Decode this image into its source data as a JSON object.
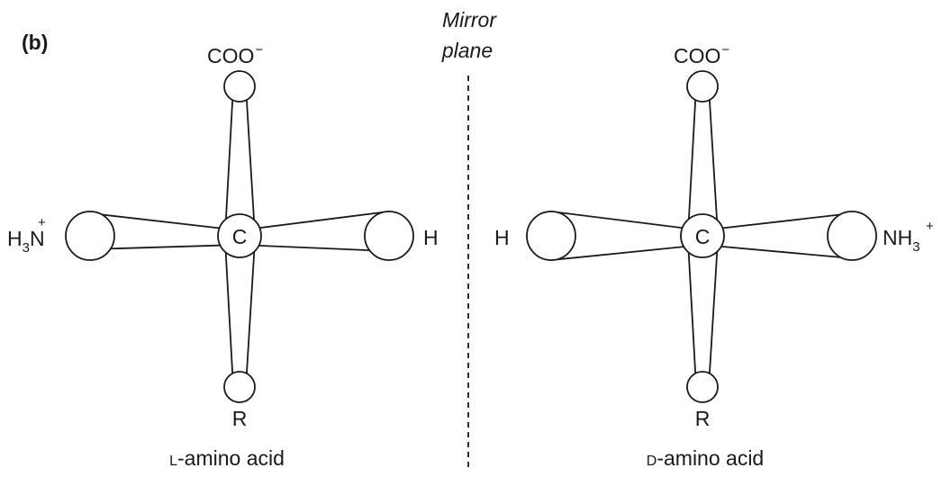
{
  "panel_label": "(b)",
  "mirror": {
    "line1": "Mirror",
    "line2": "plane"
  },
  "left_molecule": {
    "top_group": "COO",
    "top_charge": "−",
    "center_atom": "C",
    "left_group_main": "H",
    "left_group_sub": "3",
    "left_group_atom": "N",
    "left_group_charge": "+",
    "right_group": "H",
    "bottom_group": "R",
    "caption_prefix": "L",
    "caption_rest": "-amino acid"
  },
  "right_molecule": {
    "top_group": "COO",
    "top_charge": "−",
    "center_atom": "C",
    "left_group": "H",
    "right_group_main": "NH",
    "right_group_sub": "3",
    "right_group_charge": "+",
    "bottom_group": "R",
    "caption_prefix": "D",
    "caption_rest": "-amino acid"
  },
  "colors": {
    "ink": "#1a1a1a",
    "background": "#ffffff"
  }
}
